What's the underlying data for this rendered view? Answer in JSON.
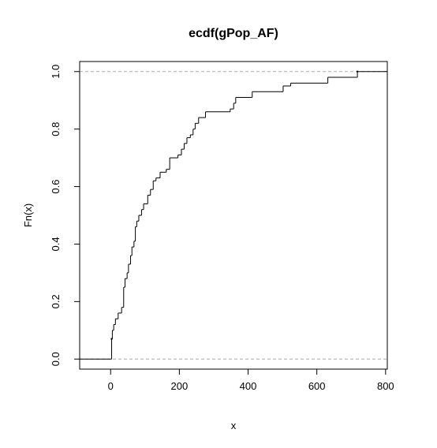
{
  "chart_data": {
    "type": "line",
    "subtype": "ecdf-step",
    "title": "ecdf(gPop_AF)",
    "xlabel": "x",
    "ylabel": "Fn(x)",
    "xlim": [
      -90,
      805
    ],
    "ylim": [
      -0.035,
      1.035
    ],
    "x_ticks": [
      0,
      200,
      400,
      600,
      800
    ],
    "y_ticks": [
      0.0,
      0.2,
      0.4,
      0.6,
      0.8,
      1.0
    ],
    "x_tick_labels": [
      "0",
      "200",
      "400",
      "600",
      "800"
    ],
    "y_tick_labels": [
      "0.0",
      "0.2",
      "0.4",
      "0.6",
      "0.8",
      "1.0"
    ],
    "reference_lines": [
      0,
      1
    ],
    "colors": {
      "line": "#000000",
      "reference": "#aaaaaa"
    },
    "grid": false,
    "legend": "none",
    "steps": [
      {
        "x": 3,
        "y": 0.07
      },
      {
        "x": 5,
        "y": 0.1
      },
      {
        "x": 9,
        "y": 0.12
      },
      {
        "x": 14,
        "y": 0.14
      },
      {
        "x": 22,
        "y": 0.16
      },
      {
        "x": 32,
        "y": 0.18
      },
      {
        "x": 38,
        "y": 0.25
      },
      {
        "x": 42,
        "y": 0.28
      },
      {
        "x": 48,
        "y": 0.3
      },
      {
        "x": 52,
        "y": 0.33
      },
      {
        "x": 58,
        "y": 0.36
      },
      {
        "x": 62,
        "y": 0.39
      },
      {
        "x": 68,
        "y": 0.41
      },
      {
        "x": 72,
        "y": 0.46
      },
      {
        "x": 76,
        "y": 0.48
      },
      {
        "x": 82,
        "y": 0.5
      },
      {
        "x": 90,
        "y": 0.52
      },
      {
        "x": 96,
        "y": 0.54
      },
      {
        "x": 108,
        "y": 0.57
      },
      {
        "x": 116,
        "y": 0.59
      },
      {
        "x": 124,
        "y": 0.62
      },
      {
        "x": 132,
        "y": 0.63
      },
      {
        "x": 144,
        "y": 0.65
      },
      {
        "x": 162,
        "y": 0.66
      },
      {
        "x": 172,
        "y": 0.7
      },
      {
        "x": 196,
        "y": 0.71
      },
      {
        "x": 206,
        "y": 0.73
      },
      {
        "x": 214,
        "y": 0.75
      },
      {
        "x": 222,
        "y": 0.77
      },
      {
        "x": 232,
        "y": 0.78
      },
      {
        "x": 240,
        "y": 0.8
      },
      {
        "x": 246,
        "y": 0.82
      },
      {
        "x": 256,
        "y": 0.84
      },
      {
        "x": 276,
        "y": 0.86
      },
      {
        "x": 348,
        "y": 0.87
      },
      {
        "x": 358,
        "y": 0.89
      },
      {
        "x": 364,
        "y": 0.91
      },
      {
        "x": 412,
        "y": 0.93
      },
      {
        "x": 502,
        "y": 0.95
      },
      {
        "x": 524,
        "y": 0.96
      },
      {
        "x": 632,
        "y": 0.98
      },
      {
        "x": 718,
        "y": 1.0
      }
    ],
    "end_points": [
      {
        "x": 3,
        "y": 0.07
      },
      {
        "x": 718,
        "y": 1.0
      }
    ]
  }
}
